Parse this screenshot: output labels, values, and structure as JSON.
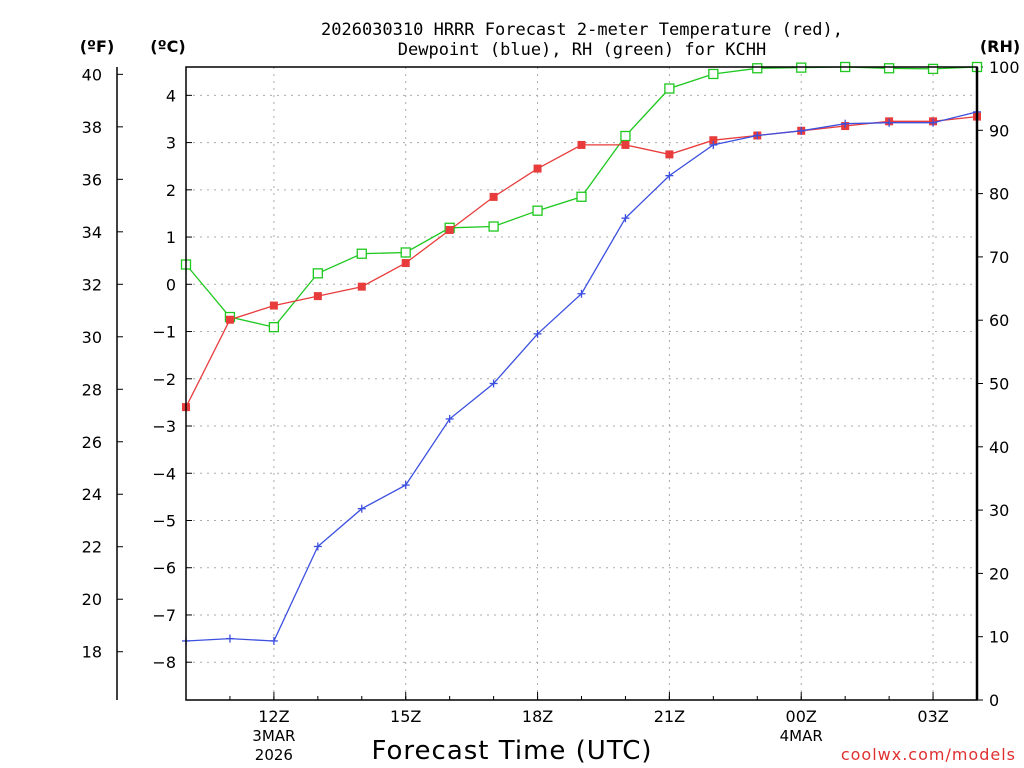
{
  "chart_data": {
    "type": "line",
    "title_line1": "2026030310 HRRR Forecast 2-meter Temperature (red),",
    "title_line2": "Dewpoint (blue), RH (green) for KCHH",
    "xlabel": "Forecast Time (UTC)",
    "credit": "coolwx.com/models",
    "unit_f": "(ºF)",
    "unit_c": "(ºC)",
    "unit_rh": "(RH)",
    "ylim_c": [
      -8.8,
      4.6
    ],
    "ylim_f": [
      16.16,
      40.28
    ],
    "ylim_rh": [
      0,
      100
    ],
    "xlim_hours": [
      10,
      28
    ],
    "x_hours": [
      10,
      11,
      12,
      13,
      14,
      15,
      16,
      17,
      18,
      19,
      20,
      21,
      22,
      23,
      24,
      25,
      26,
      27,
      28
    ],
    "f_ticks": [
      18,
      20,
      22,
      24,
      26,
      28,
      30,
      32,
      34,
      36,
      38,
      40
    ],
    "c_ticks": [
      -8,
      -7,
      -6,
      -5,
      -4,
      -3,
      -2,
      -1,
      0,
      1,
      2,
      3,
      4
    ],
    "rh_ticks": [
      0,
      10,
      20,
      30,
      40,
      50,
      60,
      70,
      80,
      90,
      100
    ],
    "x_ticks": [
      {
        "hour": 12,
        "label": "12Z",
        "date": "3MAR",
        "year": "2026"
      },
      {
        "hour": 15,
        "label": "15Z",
        "date": "",
        "year": ""
      },
      {
        "hour": 18,
        "label": "18Z",
        "date": "",
        "year": ""
      },
      {
        "hour": 21,
        "label": "21Z",
        "date": "",
        "year": ""
      },
      {
        "hour": 24,
        "label": "00Z",
        "date": "4MAR",
        "year": ""
      },
      {
        "hour": 27,
        "label": "03Z",
        "date": "",
        "year": ""
      }
    ],
    "series": [
      {
        "name": "2-meter Temperature (°C)",
        "color": "#e83c3c",
        "marker": "filled-square",
        "values": [
          -2.6,
          -0.75,
          -0.45,
          -0.25,
          -0.05,
          0.45,
          1.15,
          1.85,
          2.45,
          2.95,
          2.95,
          2.75,
          3.05,
          3.15,
          3.25,
          3.35,
          3.45,
          3.45,
          3.55
        ]
      },
      {
        "name": "Dewpoint (°C)",
        "color": "#3c50e0",
        "marker": "plus",
        "values": [
          -7.55,
          -7.5,
          -7.55,
          -5.55,
          -4.75,
          -4.25,
          -2.85,
          -2.1,
          -1.05,
          -0.2,
          1.4,
          2.3,
          2.95,
          3.15,
          3.25,
          3.4,
          3.42,
          3.42,
          3.65
        ]
      },
      {
        "name": "RH (%)",
        "color": "#1ec81e",
        "marker": "open-square",
        "values": [
          68.8,
          60.5,
          58.9,
          67.4,
          70.5,
          70.7,
          74.6,
          74.8,
          77.3,
          79.5,
          89.1,
          96.6,
          98.9,
          99.8,
          99.9,
          100,
          99.8,
          99.7,
          100
        ]
      }
    ]
  }
}
